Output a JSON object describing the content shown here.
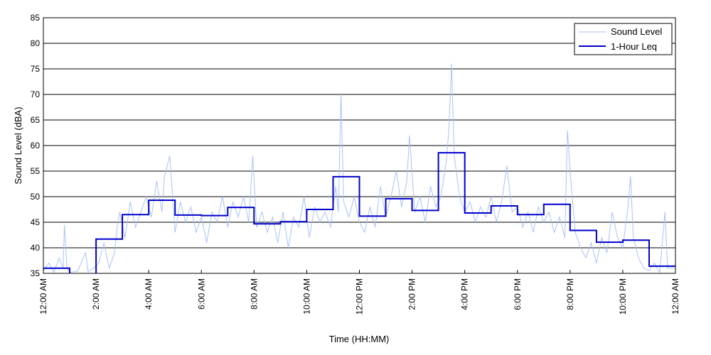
{
  "chart_data": {
    "type": "line",
    "xlabel": "Time (HH:MM)",
    "ylabel": "Sound Level (dBA)",
    "xlim": [
      0,
      24
    ],
    "ylim": [
      35,
      85
    ],
    "grid": true,
    "legend_position": "top-right",
    "x_tick_labels": [
      "12:00 AM",
      "2:00 AM",
      "4:00 AM",
      "6:00 AM",
      "8:00 AM",
      "10:00 AM",
      "12:00 PM",
      "2:00 PM",
      "4:00 PM",
      "6:00 PM",
      "8:00 PM",
      "10:00 PM",
      "12:00 AM"
    ],
    "x_tick_values": [
      0,
      2,
      4,
      6,
      8,
      10,
      12,
      14,
      16,
      18,
      20,
      22,
      24
    ],
    "y_ticks": [
      35,
      40,
      45,
      50,
      55,
      60,
      65,
      70,
      75,
      80,
      85
    ],
    "series": [
      {
        "name": "Sound Level",
        "style": "thin-line",
        "color": "#a9c3f5",
        "points": [
          [
            0,
            35.5
          ],
          [
            0.2,
            37
          ],
          [
            0.4,
            35.2
          ],
          [
            0.6,
            38
          ],
          [
            0.75,
            36
          ],
          [
            0.8,
            44.5
          ],
          [
            0.9,
            36
          ],
          [
            1.0,
            35.2
          ],
          [
            1.3,
            35.4
          ],
          [
            1.6,
            39
          ],
          [
            1.7,
            35.3
          ],
          [
            1.9,
            36
          ],
          [
            2.1,
            37
          ],
          [
            2.3,
            41
          ],
          [
            2.5,
            36
          ],
          [
            2.7,
            39
          ],
          [
            2.8,
            44
          ],
          [
            2.9,
            47
          ],
          [
            3.1,
            42
          ],
          [
            3.3,
            49
          ],
          [
            3.5,
            44
          ],
          [
            3.7,
            47
          ],
          [
            3.9,
            50
          ],
          [
            4.1,
            46
          ],
          [
            4.3,
            53
          ],
          [
            4.5,
            47
          ],
          [
            4.6,
            54
          ],
          [
            4.8,
            58
          ],
          [
            5.0,
            43
          ],
          [
            5.2,
            49
          ],
          [
            5.4,
            45
          ],
          [
            5.6,
            48
          ],
          [
            5.8,
            43
          ],
          [
            6.0,
            46
          ],
          [
            6.2,
            41
          ],
          [
            6.4,
            47
          ],
          [
            6.6,
            45
          ],
          [
            6.8,
            50
          ],
          [
            7.0,
            44
          ],
          [
            7.2,
            49
          ],
          [
            7.4,
            46
          ],
          [
            7.6,
            50
          ],
          [
            7.8,
            45
          ],
          [
            7.95,
            58
          ],
          [
            8.1,
            44
          ],
          [
            8.3,
            47
          ],
          [
            8.5,
            43
          ],
          [
            8.7,
            46
          ],
          [
            8.9,
            41
          ],
          [
            9.1,
            47
          ],
          [
            9.3,
            40
          ],
          [
            9.5,
            46
          ],
          [
            9.7,
            44
          ],
          [
            9.9,
            50
          ],
          [
            10.1,
            42
          ],
          [
            10.3,
            48
          ],
          [
            10.5,
            45
          ],
          [
            10.7,
            47
          ],
          [
            10.9,
            44
          ],
          [
            11.1,
            52
          ],
          [
            11.2,
            47
          ],
          [
            11.3,
            70
          ],
          [
            11.4,
            49
          ],
          [
            11.6,
            46
          ],
          [
            11.8,
            50
          ],
          [
            12.0,
            45
          ],
          [
            12.2,
            43
          ],
          [
            12.4,
            48
          ],
          [
            12.6,
            44
          ],
          [
            12.8,
            52
          ],
          [
            13.0,
            46
          ],
          [
            13.2,
            50
          ],
          [
            13.4,
            55
          ],
          [
            13.6,
            48
          ],
          [
            13.8,
            53
          ],
          [
            13.9,
            62
          ],
          [
            14.1,
            47
          ],
          [
            14.3,
            50
          ],
          [
            14.5,
            45
          ],
          [
            14.7,
            52
          ],
          [
            14.9,
            48
          ],
          [
            15.1,
            50
          ],
          [
            15.3,
            57
          ],
          [
            15.4,
            63
          ],
          [
            15.5,
            76
          ],
          [
            15.6,
            58
          ],
          [
            15.8,
            50
          ],
          [
            16.0,
            47
          ],
          [
            16.2,
            49
          ],
          [
            16.4,
            45
          ],
          [
            16.6,
            48
          ],
          [
            16.8,
            46
          ],
          [
            17.0,
            50
          ],
          [
            17.2,
            45
          ],
          [
            17.4,
            49
          ],
          [
            17.6,
            56
          ],
          [
            17.8,
            47
          ],
          [
            18.0,
            48
          ],
          [
            18.2,
            44
          ],
          [
            18.4,
            47
          ],
          [
            18.6,
            43
          ],
          [
            18.8,
            48
          ],
          [
            19.0,
            45
          ],
          [
            19.2,
            47
          ],
          [
            19.4,
            43
          ],
          [
            19.6,
            46
          ],
          [
            19.8,
            42
          ],
          [
            19.9,
            63
          ],
          [
            20.0,
            55
          ],
          [
            20.2,
            43
          ],
          [
            20.4,
            40
          ],
          [
            20.6,
            38
          ],
          [
            20.8,
            41
          ],
          [
            21.0,
            37
          ],
          [
            21.2,
            42
          ],
          [
            21.4,
            39
          ],
          [
            21.6,
            47
          ],
          [
            21.8,
            42
          ],
          [
            22.0,
            40
          ],
          [
            22.2,
            48
          ],
          [
            22.3,
            54
          ],
          [
            22.4,
            42
          ],
          [
            22.6,
            38
          ],
          [
            22.8,
            36
          ],
          [
            23.0,
            35.5
          ],
          [
            23.2,
            37
          ],
          [
            23.4,
            35.2
          ],
          [
            23.6,
            47
          ],
          [
            23.7,
            36
          ],
          [
            24.0,
            36
          ]
        ]
      },
      {
        "name": "1-Hour Leq",
        "style": "step",
        "color": "#0000cc",
        "hour_values": [
          36,
          34.5,
          41.7,
          46.5,
          49.3,
          46.4,
          46.3,
          47.9,
          44.7,
          45.1,
          47.5,
          53.9,
          46.2,
          49.6,
          47.3,
          58.6,
          46.8,
          48.2,
          46.5,
          48.5,
          43.4,
          41.1,
          41.5,
          36.4
        ]
      }
    ]
  }
}
